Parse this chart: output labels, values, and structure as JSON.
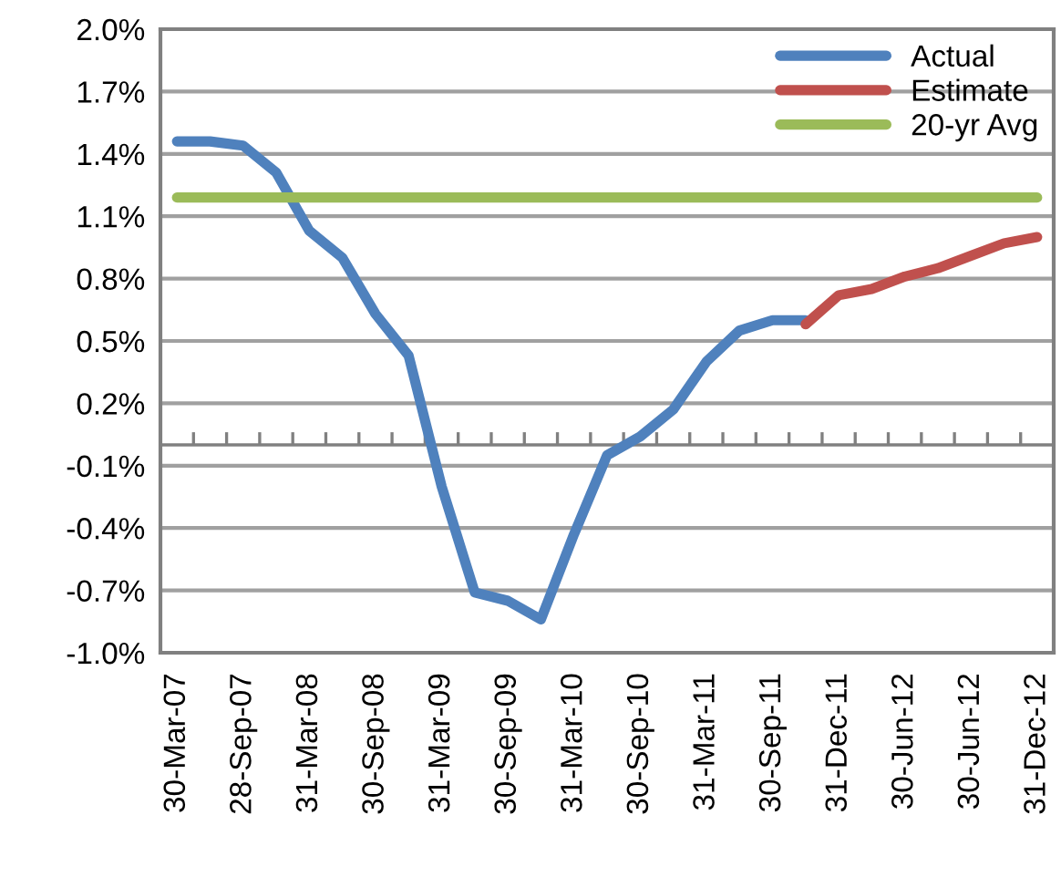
{
  "chart_data": {
    "type": "line",
    "categories": [
      "30-Mar-07",
      null,
      "28-Sep-07",
      null,
      "31-Mar-08",
      null,
      "30-Sep-08",
      null,
      "31-Mar-09",
      null,
      "30-Sep-09",
      null,
      "31-Mar-10",
      null,
      "30-Sep-10",
      null,
      "31-Mar-11",
      null,
      "30-Sep-11",
      null,
      "31-Dec-11",
      null,
      "30-Jun-12",
      null,
      "30-Jun-12",
      null,
      "31-Dec-12"
    ],
    "series": [
      {
        "name": "Actual",
        "color": "#4f81bd",
        "values": [
          1.46,
          1.46,
          1.44,
          1.31,
          1.03,
          0.9,
          0.63,
          0.43,
          -0.2,
          -0.71,
          -0.75,
          -0.84,
          -0.43,
          -0.05,
          0.04,
          0.17,
          0.4,
          0.55,
          0.6,
          0.6,
          null,
          null,
          null,
          null,
          null,
          null,
          null
        ]
      },
      {
        "name": "Estimate",
        "color": "#c0504d",
        "values": [
          null,
          null,
          null,
          null,
          null,
          null,
          null,
          null,
          null,
          null,
          null,
          null,
          null,
          null,
          null,
          null,
          null,
          null,
          null,
          0.58,
          0.72,
          0.75,
          0.81,
          0.85,
          0.91,
          0.97,
          1.0
        ]
      },
      {
        "name": "20-yr Avg",
        "color": "#9bbb59",
        "values": [
          1.19,
          1.19,
          1.19,
          1.19,
          1.19,
          1.19,
          1.19,
          1.19,
          1.19,
          1.19,
          1.19,
          1.19,
          1.19,
          1.19,
          1.19,
          1.19,
          1.19,
          1.19,
          1.19,
          1.19,
          1.19,
          1.19,
          1.19,
          1.19,
          1.19,
          1.19,
          1.19
        ]
      }
    ],
    "ylim": [
      -1.0,
      2.0
    ],
    "yticks": [
      {
        "value": -1.0,
        "label": "-1.0%"
      },
      {
        "value": -0.7,
        "label": "-0.7%"
      },
      {
        "value": -0.4,
        "label": "-0.4%"
      },
      {
        "value": -0.1,
        "label": "-0.1%"
      },
      {
        "value": 0.2,
        "label": "0.2%"
      },
      {
        "value": 0.5,
        "label": "0.5%"
      },
      {
        "value": 0.8,
        "label": "0.8%"
      },
      {
        "value": 1.1,
        "label": "1.1%"
      },
      {
        "value": 1.4,
        "label": "1.4%"
      },
      {
        "value": 1.7,
        "label": "1.7%"
      },
      {
        "value": 2.0,
        "label": "2.0%"
      }
    ],
    "grid": "y",
    "legend": "top right",
    "marker": "none",
    "line_style": "solid"
  }
}
